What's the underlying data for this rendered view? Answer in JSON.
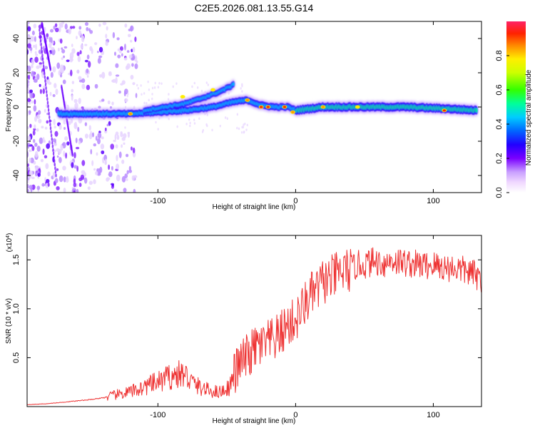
{
  "title": "C2E5.2026.081.13.55.G14",
  "colors": {
    "snr_line": "#ee3333",
    "cool_blob": "#6a00ff",
    "track_core": "#00e5ff",
    "frame": "#000000"
  },
  "chart_data": [
    {
      "type": "heatmap",
      "name": "spectrogram",
      "title": "C2E5.2026.081.13.55.G14",
      "xlabel": "Height of straight line (km)",
      "ylabel": "Frequency (Hz)",
      "xlim": [
        -195,
        135
      ],
      "ylim": [
        -50,
        50
      ],
      "x_ticks": [
        -100,
        0,
        100
      ],
      "x_tick_labels": [
        "-100",
        "0",
        "100"
      ],
      "y_ticks": [
        -40,
        -20,
        0,
        20,
        40
      ],
      "y_tick_labels": [
        "-40",
        "-20",
        "0",
        "20",
        "40"
      ],
      "colorbar": {
        "label": "Normalized spectral amplitude",
        "range": [
          0,
          1
        ],
        "ticks": [
          0.0,
          0.2,
          0.4,
          0.6,
          0.8
        ],
        "tick_labels": [
          "0.0",
          "0.2",
          "0.4",
          "0.6",
          "0.8"
        ]
      },
      "tracks": [
        {
          "name": "main-track",
          "x": [
            -172,
            -160,
            -140,
            -120,
            -100,
            -80,
            -60,
            -45,
            -35,
            -25,
            -15,
            -5,
            0,
            20,
            50,
            80,
            110,
            132
          ],
          "y": [
            -4,
            -4,
            -4,
            -4,
            -3,
            -2,
            0,
            3,
            4,
            1,
            0,
            0,
            -2,
            0,
            0,
            0,
            -1,
            -2
          ]
        },
        {
          "name": "upper-branch",
          "x": [
            -110,
            -95,
            -80,
            -65,
            -55,
            -45
          ],
          "y": [
            -2,
            0,
            2,
            6,
            9,
            13
          ]
        }
      ],
      "track_peaks": [
        {
          "x": -120,
          "y": -4,
          "amplitude": 0.75
        },
        {
          "x": -82,
          "y": 6,
          "amplitude": 0.6
        },
        {
          "x": -60,
          "y": 10,
          "amplitude": 0.55
        },
        {
          "x": -35,
          "y": 4,
          "amplitude": 0.8
        },
        {
          "x": -25,
          "y": 0,
          "amplitude": 0.9
        },
        {
          "x": -20,
          "y": 0,
          "amplitude": 0.95
        },
        {
          "x": -8,
          "y": 0,
          "amplitude": 0.9
        },
        {
          "x": -2,
          "y": -3,
          "amplitude": 0.85
        },
        {
          "x": 20,
          "y": 0,
          "amplitude": 0.85
        },
        {
          "x": 45,
          "y": 0,
          "amplitude": 0.7
        },
        {
          "x": 108,
          "y": -2,
          "amplitude": 0.9
        }
      ]
    },
    {
      "type": "line",
      "name": "snr",
      "xlabel": "Height of straight line (km)",
      "ylabel": "SNR (10 * v/v)",
      "y_multiplier": "(x10",
      "y_multiplier_exp": "4",
      "y_multiplier_close": ")",
      "xlim": [
        -195,
        135
      ],
      "ylim": [
        0,
        1.75
      ],
      "x_ticks": [
        -100,
        0,
        100
      ],
      "x_tick_labels": [
        "-100",
        "0",
        "100"
      ],
      "y_ticks": [
        0.5,
        1.0,
        1.5
      ],
      "y_tick_labels": [
        "0.5",
        "1.0",
        "1.5"
      ],
      "series": [
        {
          "name": "SNR",
          "x": [
            -195,
            -180,
            -165,
            -150,
            -140,
            -130,
            -120,
            -110,
            -100,
            -92,
            -84,
            -80,
            -76,
            -70,
            -62,
            -55,
            -48,
            -44,
            -40,
            -36,
            -32,
            -28,
            -24,
            -20,
            -16,
            -12,
            -8,
            -4,
            0,
            4,
            8,
            12,
            16,
            20,
            25,
            30,
            35,
            40,
            45,
            50,
            55,
            60,
            65,
            70,
            75,
            80,
            85,
            90,
            95,
            100,
            105,
            110,
            115,
            120,
            125,
            130,
            135
          ],
          "values": [
            0.02,
            0.03,
            0.05,
            0.07,
            0.09,
            0.12,
            0.15,
            0.2,
            0.25,
            0.3,
            0.33,
            0.32,
            0.26,
            0.2,
            0.16,
            0.15,
            0.2,
            0.35,
            0.45,
            0.5,
            0.55,
            0.62,
            0.62,
            0.65,
            0.68,
            0.72,
            0.8,
            0.85,
            0.88,
            0.98,
            1.08,
            1.15,
            1.2,
            1.28,
            1.3,
            1.35,
            1.38,
            1.4,
            1.45,
            1.45,
            1.48,
            1.48,
            1.46,
            1.5,
            1.48,
            1.47,
            1.46,
            1.45,
            1.44,
            1.45,
            1.43,
            1.42,
            1.42,
            1.4,
            1.38,
            1.35,
            1.3
          ],
          "noise_amplitude": 0.15
        }
      ]
    }
  ]
}
